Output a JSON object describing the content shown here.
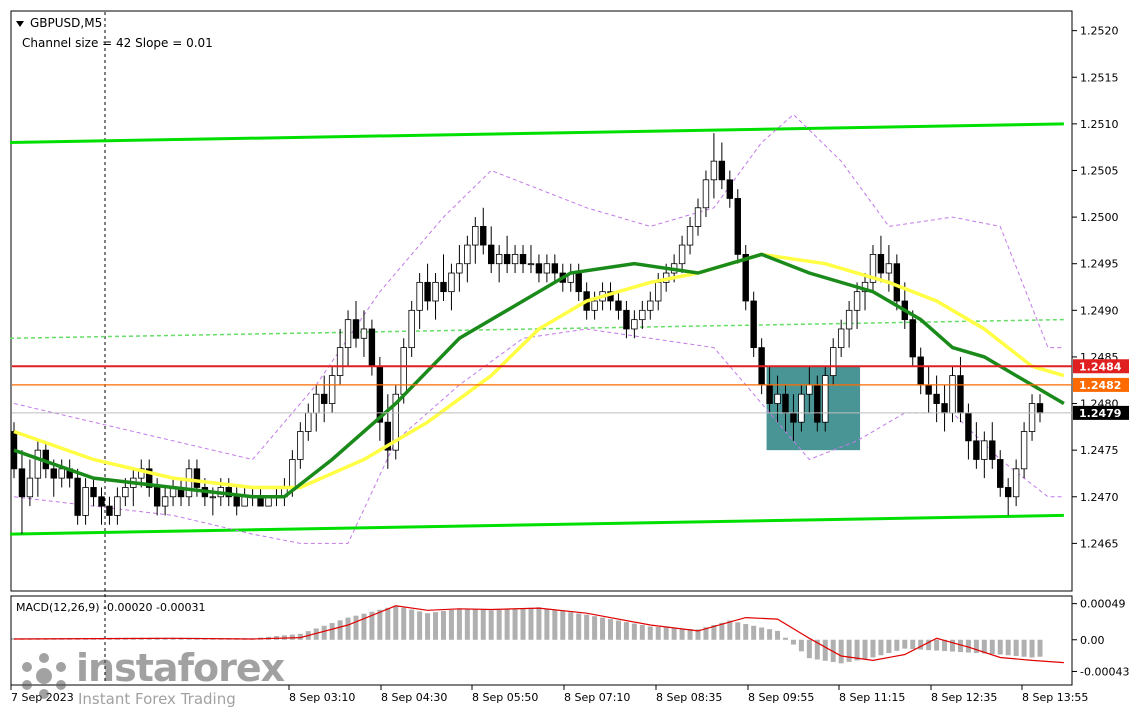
{
  "header": {
    "symbol": "GBPUSD,M5",
    "channel": "Channel size = 42 Slope = 0.01"
  },
  "price_axis": {
    "ticks": [
      "1.2520",
      "1.2515",
      "1.2510",
      "1.2505",
      "1.2500",
      "1.2495",
      "1.2490",
      "1.2485",
      "1.2480",
      "1.2475",
      "1.2470",
      "1.2465"
    ],
    "labels": {
      "red": "1.2484",
      "orange": "1.2482",
      "current": "1.2479"
    }
  },
  "macd": {
    "label": "MACD(12,26,9) -0.00020 -0.00031",
    "ticks": [
      "0.00049",
      "0.00",
      "-0.00043"
    ]
  },
  "time_axis": {
    "labels": [
      "7 Sep 2023",
      "8 Sep 03:10",
      "8 Sep 04:30",
      "8 Sep 05:50",
      "8 Sep 07:10",
      "8 Sep 08:35",
      "8 Sep 09:55",
      "8 Sep 11:15",
      "8 Sep 12:35",
      "8 Sep 13:55"
    ]
  },
  "watermark": {
    "brand": "instaforex",
    "tagline": "Instant Forex Trading"
  },
  "colors": {
    "upper_channel": "#00e000",
    "lower_channel": "#00e000",
    "mid_channel": "#66dd66",
    "ma_fast": "#1a8a1a",
    "ma_slow": "#ffff44",
    "envelope": "#c27ae8",
    "resistance": "#e02020",
    "level": "#ff6a00",
    "zone": "#3f8f8f",
    "macd_hist": "#b0b0b0",
    "macd_signal": "#e00000"
  },
  "chart_data": {
    "type": "candlestick",
    "symbol": "GBPUSD",
    "timeframe": "M5",
    "ylim": [
      1.246,
      1.2522
    ],
    "levels": [
      {
        "name": "red-level",
        "value": 1.2484
      },
      {
        "name": "orange-level",
        "value": 1.2482
      },
      {
        "name": "current-price",
        "value": 1.2479
      }
    ],
    "zone": {
      "from_index": 95,
      "to_index": 106,
      "low": 1.2475,
      "high": 1.2484
    },
    "channel": {
      "upper": [
        [
          0,
          1.2508
        ],
        [
          132,
          1.251
        ]
      ],
      "lower": [
        [
          0,
          1.2466
        ],
        [
          132,
          1.2468
        ]
      ],
      "middle": [
        [
          0,
          1.2487
        ],
        [
          132,
          1.2489
        ]
      ]
    },
    "ma_fast": [
      [
        0,
        1.2475
      ],
      [
        10,
        1.2472
      ],
      [
        20,
        1.2471
      ],
      [
        30,
        1.247
      ],
      [
        34,
        1.247
      ],
      [
        40,
        1.2474
      ],
      [
        48,
        1.248
      ],
      [
        56,
        1.2487
      ],
      [
        64,
        1.2491
      ],
      [
        70,
        1.2494
      ],
      [
        78,
        1.2495
      ],
      [
        86,
        1.2494
      ],
      [
        94,
        1.2496
      ],
      [
        100,
        1.2494
      ],
      [
        108,
        1.2492
      ],
      [
        114,
        1.2489
      ],
      [
        118,
        1.2486
      ],
      [
        122,
        1.2485
      ],
      [
        128,
        1.2482
      ],
      [
        132,
        1.248
      ]
    ],
    "ma_slow": [
      [
        0,
        1.2477
      ],
      [
        10,
        1.2474
      ],
      [
        20,
        1.2472
      ],
      [
        30,
        1.2471
      ],
      [
        36,
        1.2471
      ],
      [
        44,
        1.2474
      ],
      [
        52,
        1.2478
      ],
      [
        60,
        1.2483
      ],
      [
        66,
        1.2488
      ],
      [
        72,
        1.2491
      ],
      [
        80,
        1.2493
      ],
      [
        86,
        1.2494
      ],
      [
        94,
        1.2496
      ],
      [
        102,
        1.2495
      ],
      [
        110,
        1.2493
      ],
      [
        116,
        1.2491
      ],
      [
        122,
        1.2488
      ],
      [
        128,
        1.2484
      ],
      [
        132,
        1.2483
      ]
    ],
    "envelope_upper": [
      [
        0,
        1.248
      ],
      [
        20,
        1.2476
      ],
      [
        30,
        1.2474
      ],
      [
        38,
        1.2482
      ],
      [
        46,
        1.2492
      ],
      [
        54,
        1.25
      ],
      [
        60,
        1.2505
      ],
      [
        66,
        1.2503
      ],
      [
        72,
        1.2501
      ],
      [
        80,
        1.2499
      ],
      [
        88,
        1.2501
      ],
      [
        94,
        1.2508
      ],
      [
        98,
        1.2511
      ],
      [
        104,
        1.2506
      ],
      [
        110,
        1.2499
      ],
      [
        118,
        1.25
      ],
      [
        124,
        1.2499
      ],
      [
        130,
        1.2486
      ],
      [
        132,
        1.2486
      ]
    ],
    "envelope_lower": [
      [
        0,
        1.247
      ],
      [
        20,
        1.2468
      ],
      [
        30,
        1.2466
      ],
      [
        36,
        1.2465
      ],
      [
        42,
        1.2465
      ],
      [
        48,
        1.2476
      ],
      [
        56,
        1.2482
      ],
      [
        64,
        1.2487
      ],
      [
        72,
        1.2488
      ],
      [
        80,
        1.2487
      ],
      [
        88,
        1.2486
      ],
      [
        94,
        1.248
      ],
      [
        100,
        1.2474
      ],
      [
        106,
        1.2476
      ],
      [
        112,
        1.2479
      ],
      [
        118,
        1.2479
      ],
      [
        124,
        1.2474
      ],
      [
        130,
        1.247
      ],
      [
        132,
        1.247
      ]
    ],
    "candles_ohlc": [
      [
        1.2477,
        1.2478,
        1.2472,
        1.2473
      ],
      [
        1.2473,
        1.2475,
        1.2466,
        1.247
      ],
      [
        1.247,
        1.2474,
        1.2469,
        1.2472
      ],
      [
        1.2472,
        1.2476,
        1.247,
        1.2475
      ],
      [
        1.2475,
        1.2476,
        1.2472,
        1.2473
      ],
      [
        1.2473,
        1.2474,
        1.247,
        1.2472
      ],
      [
        1.2472,
        1.2474,
        1.2471,
        1.2473
      ],
      [
        1.2473,
        1.2474,
        1.2471,
        1.2472
      ],
      [
        1.2472,
        1.2473,
        1.2467,
        1.2468
      ],
      [
        1.2468,
        1.2472,
        1.2467,
        1.2471
      ],
      [
        1.2471,
        1.2472,
        1.2469,
        1.247
      ],
      [
        1.247,
        1.2471,
        1.2467,
        1.2469
      ],
      [
        1.2469,
        1.247,
        1.2467,
        1.2468
      ],
      [
        1.2468,
        1.2471,
        1.2467,
        1.247
      ],
      [
        1.247,
        1.2472,
        1.2469,
        1.2471
      ],
      [
        1.2471,
        1.2473,
        1.2469,
        1.2472
      ],
      [
        1.2472,
        1.2474,
        1.2471,
        1.2473
      ],
      [
        1.2473,
        1.2474,
        1.247,
        1.2471
      ],
      [
        1.2471,
        1.2472,
        1.2468,
        1.2469
      ],
      [
        1.2469,
        1.2471,
        1.2468,
        1.247
      ],
      [
        1.247,
        1.2472,
        1.2469,
        1.2471
      ],
      [
        1.2471,
        1.2472,
        1.2469,
        1.247
      ],
      [
        1.247,
        1.2474,
        1.2469,
        1.2473
      ],
      [
        1.2473,
        1.2474,
        1.247,
        1.2471
      ],
      [
        1.2471,
        1.2472,
        1.2469,
        1.247
      ],
      [
        1.247,
        1.2471,
        1.2468,
        1.247
      ],
      [
        1.247,
        1.2472,
        1.2469,
        1.2471
      ],
      [
        1.2471,
        1.2472,
        1.2469,
        1.247
      ],
      [
        1.247,
        1.2471,
        1.2468,
        1.2469
      ],
      [
        1.2469,
        1.2471,
        1.2469,
        1.247
      ],
      [
        1.247,
        1.2471,
        1.2469,
        1.247
      ],
      [
        1.247,
        1.2471,
        1.2469,
        1.2469
      ],
      [
        1.2469,
        1.247,
        1.2469,
        1.247
      ],
      [
        1.247,
        1.2471,
        1.2469,
        1.247
      ],
      [
        1.247,
        1.2472,
        1.2469,
        1.2471
      ],
      [
        1.2471,
        1.2475,
        1.247,
        1.2474
      ],
      [
        1.2474,
        1.2478,
        1.2473,
        1.2477
      ],
      [
        1.2477,
        1.248,
        1.2476,
        1.2479
      ],
      [
        1.2479,
        1.2482,
        1.2477,
        1.2481
      ],
      [
        1.2481,
        1.2483,
        1.2478,
        1.248
      ],
      [
        1.248,
        1.2484,
        1.2479,
        1.2483
      ],
      [
        1.2483,
        1.2488,
        1.2482,
        1.2486
      ],
      [
        1.2486,
        1.249,
        1.2484,
        1.2489
      ],
      [
        1.2489,
        1.2491,
        1.2486,
        1.2487
      ],
      [
        1.2487,
        1.249,
        1.2485,
        1.2488
      ],
      [
        1.2488,
        1.2489,
        1.2483,
        1.2484
      ],
      [
        1.2484,
        1.2485,
        1.2476,
        1.2478
      ],
      [
        1.2478,
        1.2481,
        1.2473,
        1.2475
      ],
      [
        1.2475,
        1.2482,
        1.2474,
        1.2481
      ],
      [
        1.2481,
        1.2487,
        1.248,
        1.2486
      ],
      [
        1.2486,
        1.2491,
        1.2485,
        1.249
      ],
      [
        1.249,
        1.2494,
        1.2488,
        1.2493
      ],
      [
        1.2493,
        1.2495,
        1.249,
        1.2491
      ],
      [
        1.2491,
        1.2494,
        1.2489,
        1.2493
      ],
      [
        1.2493,
        1.2496,
        1.2491,
        1.2492
      ],
      [
        1.2492,
        1.2495,
        1.249,
        1.2494
      ],
      [
        1.2494,
        1.2497,
        1.2492,
        1.2495
      ],
      [
        1.2495,
        1.2498,
        1.2493,
        1.2497
      ],
      [
        1.2497,
        1.25,
        1.2495,
        1.2499
      ],
      [
        1.2499,
        1.2501,
        1.2496,
        1.2497
      ],
      [
        1.2497,
        1.2499,
        1.2494,
        1.2495
      ],
      [
        1.2495,
        1.2497,
        1.2493,
        1.2496
      ],
      [
        1.2496,
        1.2498,
        1.2494,
        1.2495
      ],
      [
        1.2495,
        1.2497,
        1.2494,
        1.2496
      ],
      [
        1.2496,
        1.2497,
        1.2494,
        1.2495
      ],
      [
        1.2495,
        1.2497,
        1.2494,
        1.2495
      ],
      [
        1.2495,
        1.2496,
        1.2493,
        1.2494
      ],
      [
        1.2494,
        1.2496,
        1.2493,
        1.2495
      ],
      [
        1.2495,
        1.2496,
        1.2493,
        1.2494
      ],
      [
        1.2494,
        1.2495,
        1.2492,
        1.2493
      ],
      [
        1.2493,
        1.2495,
        1.2492,
        1.2494
      ],
      [
        1.2494,
        1.2495,
        1.2491,
        1.2492
      ],
      [
        1.2492,
        1.2493,
        1.2489,
        1.249
      ],
      [
        1.249,
        1.2492,
        1.2489,
        1.2491
      ],
      [
        1.2491,
        1.2493,
        1.249,
        1.2492
      ],
      [
        1.2492,
        1.2493,
        1.249,
        1.2491
      ],
      [
        1.2491,
        1.2492,
        1.2489,
        1.249
      ],
      [
        1.249,
        1.2491,
        1.2487,
        1.2488
      ],
      [
        1.2488,
        1.249,
        1.2487,
        1.2489
      ],
      [
        1.2489,
        1.2491,
        1.2488,
        1.249
      ],
      [
        1.249,
        1.2492,
        1.2489,
        1.2491
      ],
      [
        1.2491,
        1.2494,
        1.249,
        1.2493
      ],
      [
        1.2493,
        1.2495,
        1.2492,
        1.2494
      ],
      [
        1.2494,
        1.2496,
        1.2493,
        1.2495
      ],
      [
        1.2495,
        1.2498,
        1.2494,
        1.2497
      ],
      [
        1.2497,
        1.25,
        1.2496,
        1.2499
      ],
      [
        1.2499,
        1.2502,
        1.2498,
        1.2501
      ],
      [
        1.2501,
        1.2505,
        1.25,
        1.2504
      ],
      [
        1.2504,
        1.2509,
        1.2502,
        1.2506
      ],
      [
        1.2506,
        1.2508,
        1.2503,
        1.2504
      ],
      [
        1.2504,
        1.2505,
        1.2501,
        1.2502
      ],
      [
        1.2502,
        1.2503,
        1.2495,
        1.2496
      ],
      [
        1.2496,
        1.2497,
        1.249,
        1.2491
      ],
      [
        1.2491,
        1.2492,
        1.2485,
        1.2486
      ],
      [
        1.2486,
        1.2487,
        1.2481,
        1.2482
      ],
      [
        1.2482,
        1.2484,
        1.2479,
        1.248
      ],
      [
        1.248,
        1.2483,
        1.2478,
        1.2481
      ],
      [
        1.2481,
        1.2482,
        1.2477,
        1.2479
      ],
      [
        1.2479,
        1.2481,
        1.2476,
        1.2478
      ],
      [
        1.2478,
        1.2482,
        1.2477,
        1.2481
      ],
      [
        1.2481,
        1.2484,
        1.2479,
        1.2482
      ],
      [
        1.2482,
        1.2483,
        1.2477,
        1.2478
      ],
      [
        1.2478,
        1.2484,
        1.2477,
        1.2483
      ],
      [
        1.2483,
        1.2487,
        1.2482,
        1.2486
      ],
      [
        1.2486,
        1.2489,
        1.2485,
        1.2488
      ],
      [
        1.2488,
        1.2491,
        1.2486,
        1.249
      ],
      [
        1.249,
        1.2493,
        1.2488,
        1.2492
      ],
      [
        1.2492,
        1.2494,
        1.249,
        1.2493
      ],
      [
        1.2493,
        1.2497,
        1.2492,
        1.2496
      ],
      [
        1.2496,
        1.2498,
        1.2493,
        1.2494
      ],
      [
        1.2494,
        1.2497,
        1.2492,
        1.2495
      ],
      [
        1.2495,
        1.2496,
        1.249,
        1.2491
      ],
      [
        1.2491,
        1.2493,
        1.2488,
        1.2489
      ],
      [
        1.2489,
        1.249,
        1.2484,
        1.2485
      ],
      [
        1.2485,
        1.2486,
        1.2481,
        1.2482
      ],
      [
        1.2482,
        1.2484,
        1.2479,
        1.2481
      ],
      [
        1.2481,
        1.2483,
        1.2478,
        1.248
      ],
      [
        1.248,
        1.2482,
        1.2477,
        1.2479
      ],
      [
        1.2479,
        1.2484,
        1.2478,
        1.2483
      ],
      [
        1.2483,
        1.2485,
        1.2478,
        1.2479
      ],
      [
        1.2479,
        1.248,
        1.2474,
        1.2476
      ],
      [
        1.2476,
        1.2478,
        1.2473,
        1.2474
      ],
      [
        1.2474,
        1.2477,
        1.2472,
        1.2476
      ],
      [
        1.2476,
        1.2478,
        1.2473,
        1.2474
      ],
      [
        1.2474,
        1.2475,
        1.247,
        1.2471
      ],
      [
        1.2471,
        1.2472,
        1.2468,
        1.247
      ],
      [
        1.247,
        1.2474,
        1.2469,
        1.2473
      ],
      [
        1.2473,
        1.2478,
        1.2472,
        1.2477
      ],
      [
        1.2477,
        1.2481,
        1.2476,
        1.248
      ],
      [
        1.248,
        1.2481,
        1.2478,
        1.2479
      ]
    ],
    "macd_ylim": [
      -0.0006,
      0.00058
    ],
    "macd_hist": [
      [
        0,
        2e-05
      ],
      [
        20,
        3e-05
      ],
      [
        30,
        2e-05
      ],
      [
        36,
        8e-05
      ],
      [
        42,
        0.0003
      ],
      [
        48,
        0.00046
      ],
      [
        52,
        0.00036
      ],
      [
        56,
        0.00042
      ],
      [
        60,
        0.0004
      ],
      [
        66,
        0.00044
      ],
      [
        72,
        0.00034
      ],
      [
        80,
        0.00018
      ],
      [
        86,
        0.00014
      ],
      [
        90,
        0.00026
      ],
      [
        96,
        0.00012
      ],
      [
        100,
        -0.00025
      ],
      [
        104,
        -0.00032
      ],
      [
        108,
        -0.00024
      ],
      [
        112,
        -0.00012
      ],
      [
        118,
        -0.00016
      ],
      [
        124,
        -0.0002
      ],
      [
        128,
        -0.00024
      ],
      [
        132,
        -0.0002
      ]
    ],
    "macd_signal": [
      [
        0,
        1e-05
      ],
      [
        20,
        2e-05
      ],
      [
        30,
        1e-05
      ],
      [
        36,
        3e-05
      ],
      [
        42,
        0.0002
      ],
      [
        48,
        0.00046
      ],
      [
        52,
        0.0004
      ],
      [
        56,
        0.00042
      ],
      [
        60,
        0.00041
      ],
      [
        66,
        0.00043
      ],
      [
        72,
        0.00036
      ],
      [
        80,
        0.0002
      ],
      [
        86,
        0.00012
      ],
      [
        92,
        0.0003
      ],
      [
        96,
        0.00028
      ],
      [
        100,
        2e-05
      ],
      [
        104,
        -0.00022
      ],
      [
        108,
        -0.00028
      ],
      [
        112,
        -0.0002
      ],
      [
        116,
        2e-05
      ],
      [
        120,
        -0.0001
      ],
      [
        124,
        -0.00024
      ],
      [
        128,
        -0.00028
      ],
      [
        132,
        -0.00031
      ]
    ],
    "macd_params": "12,26,9"
  }
}
